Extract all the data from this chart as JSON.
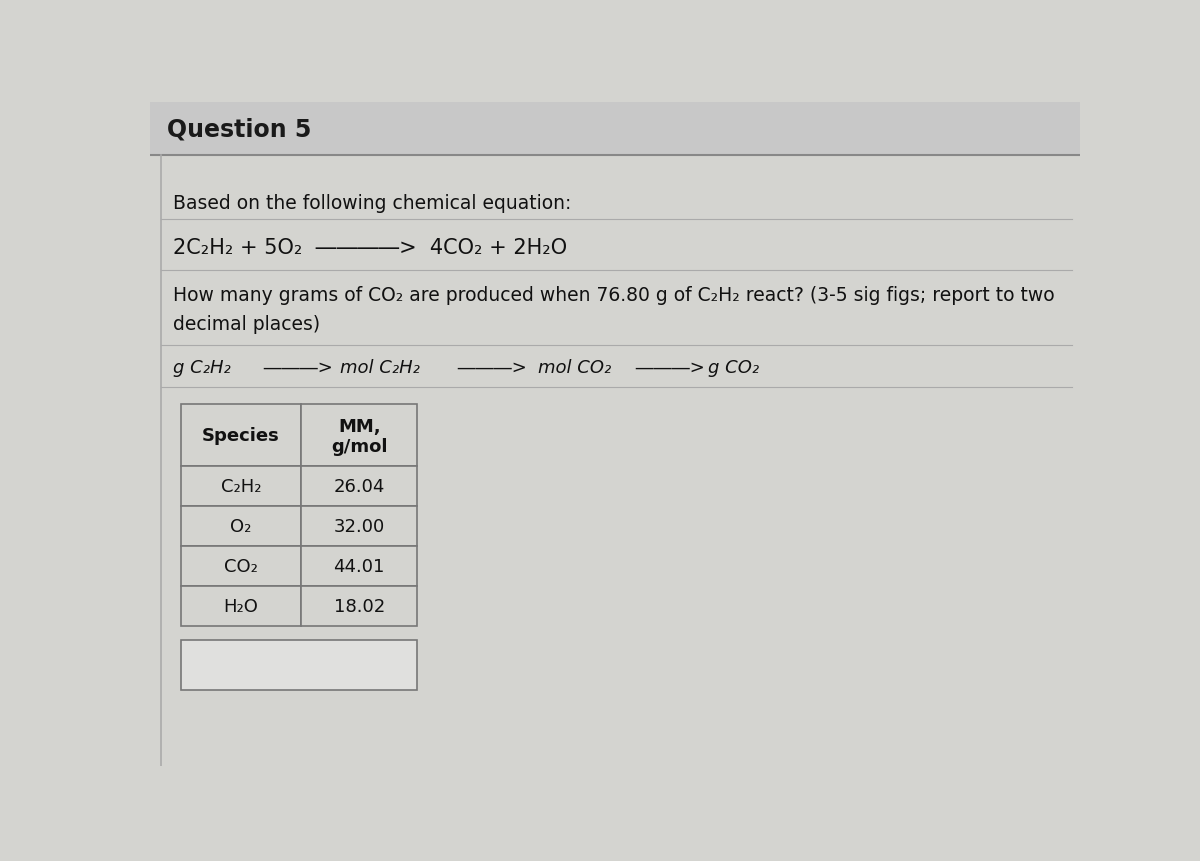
{
  "title": "Question 5",
  "title_bg_color": "#c8c8c8",
  "body_bg_color": "#d4d4d0",
  "left_border_color": "#999999",
  "title_fontsize": 17,
  "body_fontsize": 13.5,
  "eq_fontsize": 15,
  "conv_fontsize": 13,
  "table_fontsize": 13,
  "based_on_text": "Based on the following chemical equation:",
  "equation_text": "2C₂H₂ + 5O₂  ――――>  4CO₂ + 2H₂O",
  "question_line1": "How many grams of CO₂ are produced when 76.80 g of C₂H₂ react? (3-5 sig figs; report to two",
  "question_line2": "decimal places)",
  "conv_parts": [
    "g C₂H₂",
    " ―――> ",
    "mol C₂H₂",
    " ―――> ",
    "mol CO₂",
    " ―――> ",
    "g CO₂"
  ],
  "table_species": [
    "C₂H₂",
    "O₂",
    "CO₂",
    "H₂O"
  ],
  "table_mm": [
    "26.04",
    "32.00",
    "44.01",
    "18.02"
  ],
  "table_header_col1": "Species",
  "table_header_col2_line1": "MM,",
  "table_header_col2_line2": "g/mol"
}
